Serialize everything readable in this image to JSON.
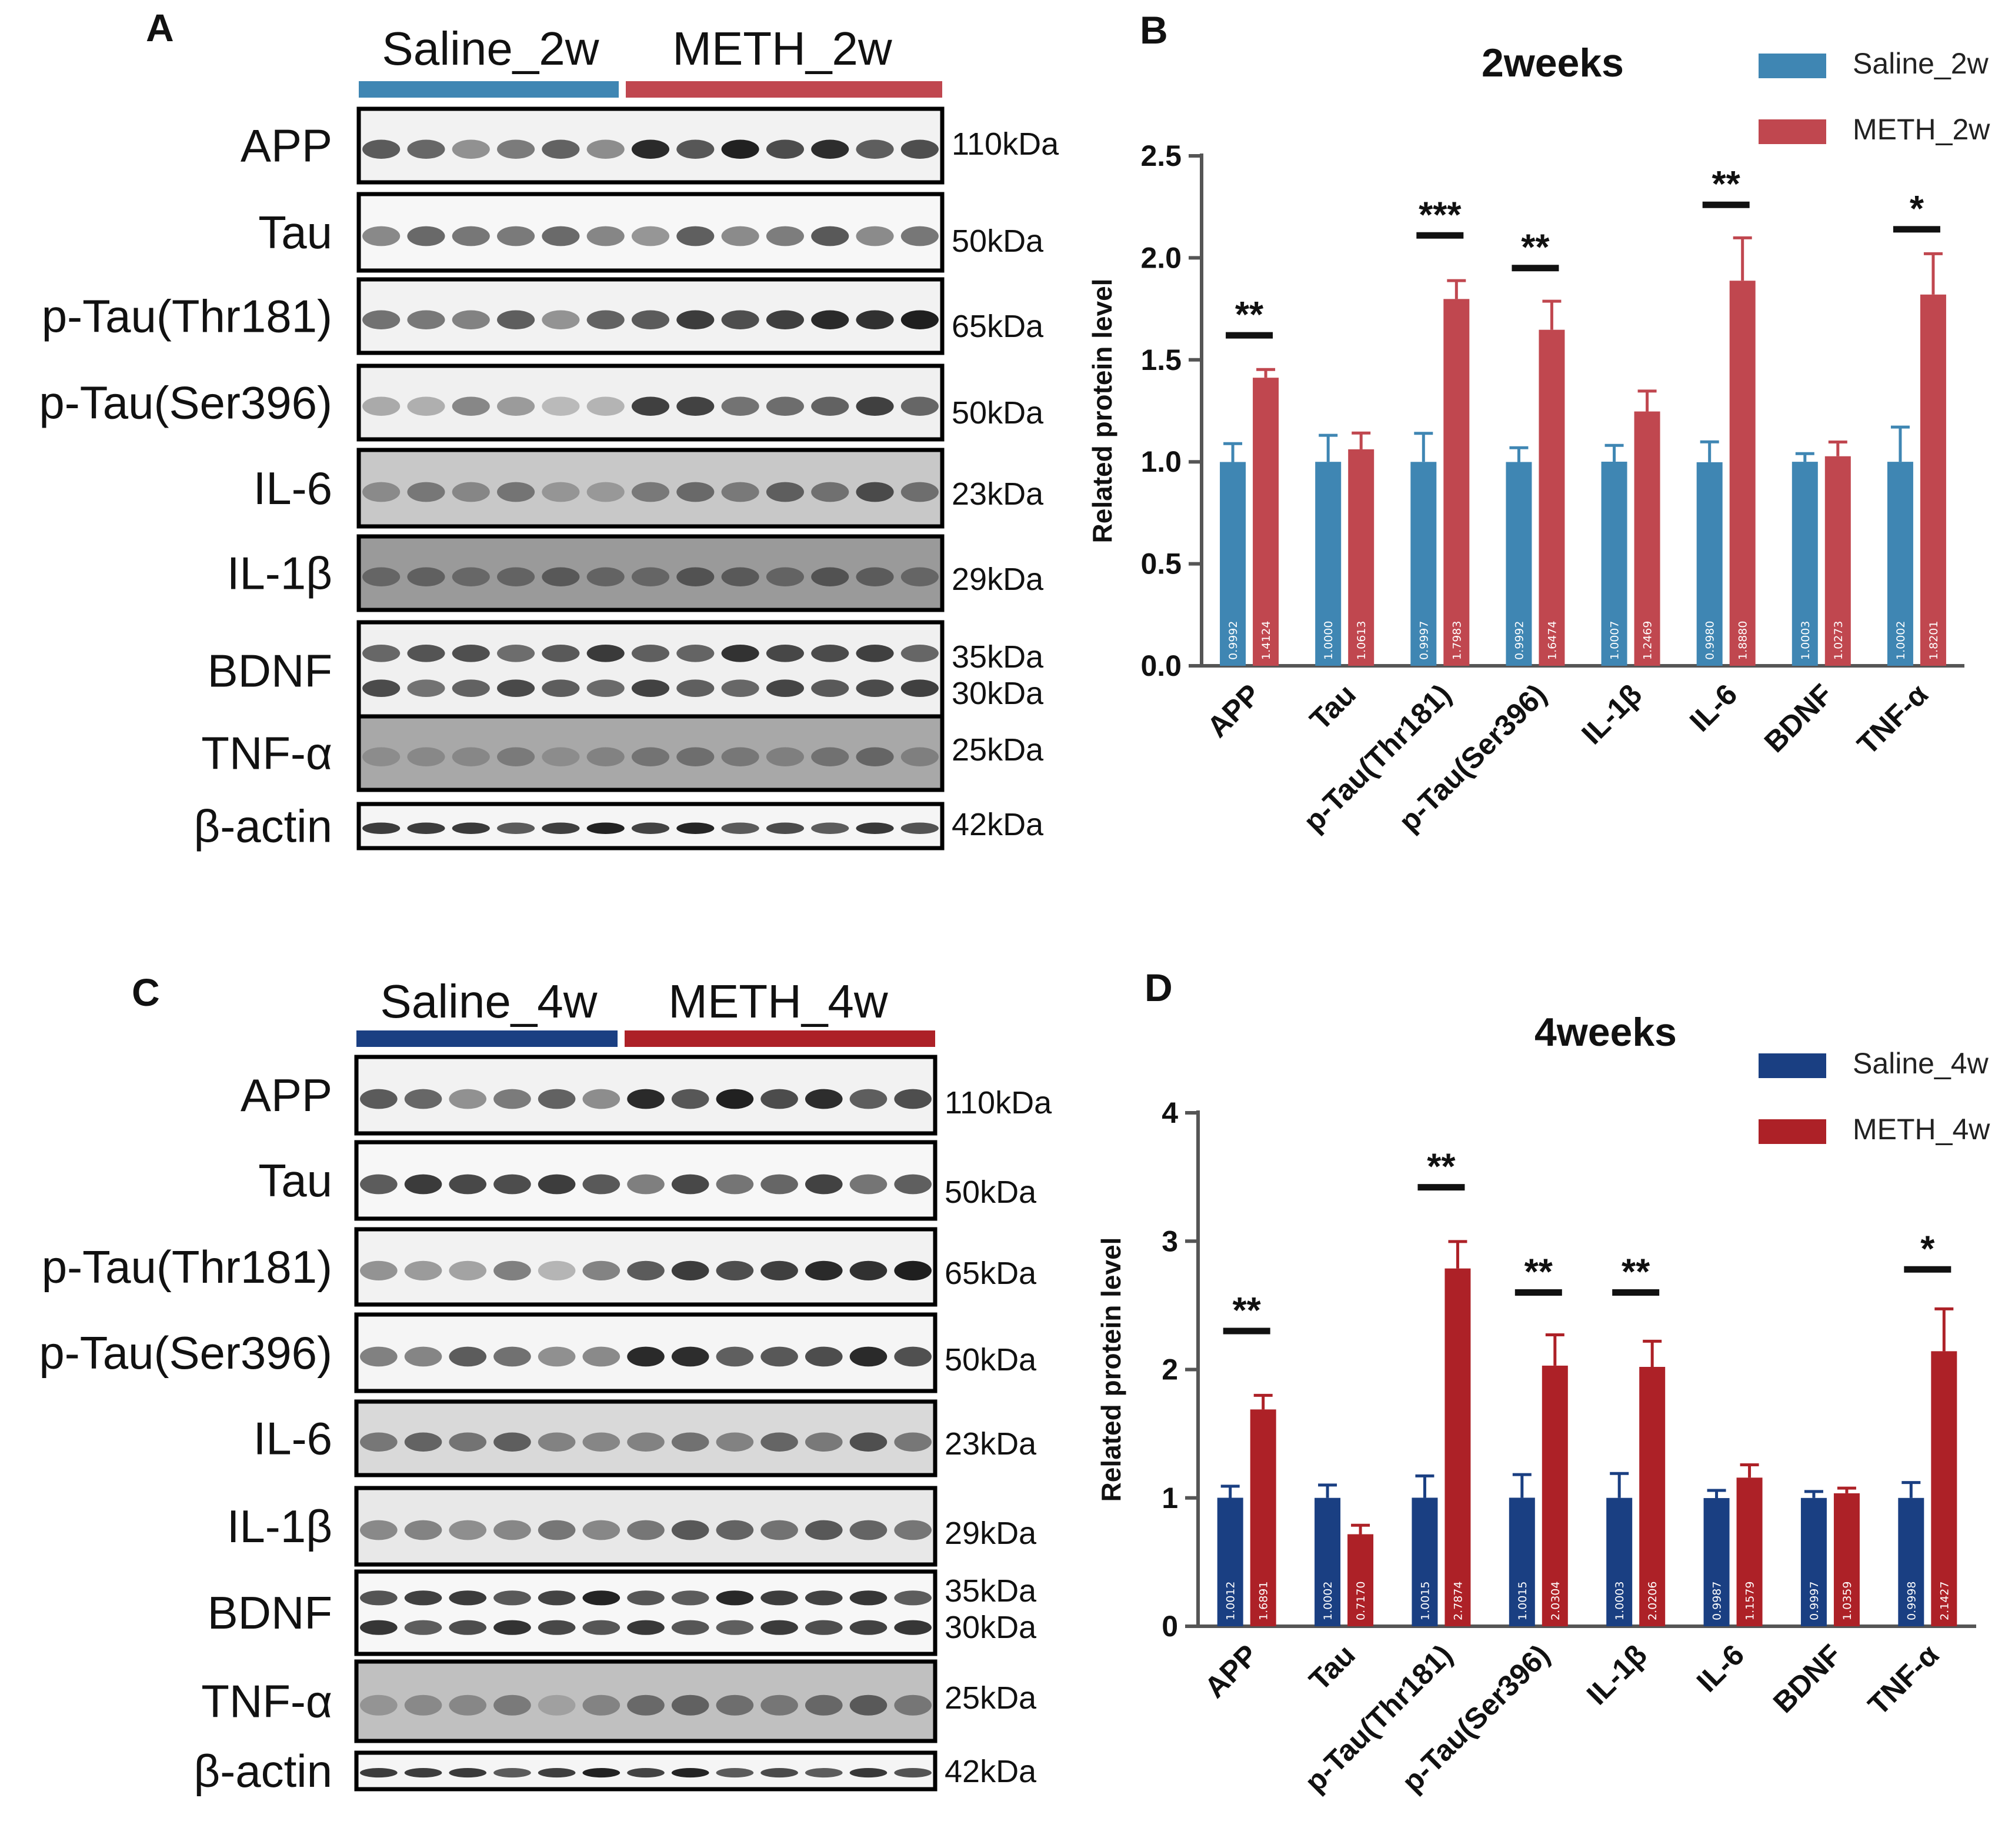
{
  "panels": {
    "A": "A",
    "B": "B",
    "C": "C",
    "D": "D"
  },
  "blots": [
    {
      "letter_key": "A",
      "groups": [
        "Saline_2w",
        "METH_2w"
      ],
      "group_colors": [
        "#3f86b3",
        "#c0474f"
      ],
      "rows": [
        {
          "label": "APP",
          "kda": [
            "110kDa"
          ]
        },
        {
          "label": "Tau",
          "kda": [
            "50kDa"
          ]
        },
        {
          "label": "p-Tau(Thr181)",
          "kda": [
            "65kDa"
          ]
        },
        {
          "label": "p-Tau(Ser396)",
          "kda": [
            "50kDa"
          ]
        },
        {
          "label": "IL-6",
          "kda": [
            "23kDa"
          ]
        },
        {
          "label": "IL-1β",
          "kda": [
            "29kDa"
          ]
        },
        {
          "label": "BDNF",
          "kda": [
            "35kDa",
            "30kDa"
          ]
        },
        {
          "label": "TNF-α",
          "kda": [
            "25kDa"
          ]
        },
        {
          "label": "β-actin",
          "kda": [
            "42kDa"
          ]
        }
      ]
    },
    {
      "letter_key": "C",
      "groups": [
        "Saline_4w",
        "METH_4w"
      ],
      "group_colors": [
        "#1a3f82",
        "#ad2127"
      ],
      "rows": [
        {
          "label": "APP",
          "kda": [
            "110kDa"
          ]
        },
        {
          "label": "Tau",
          "kda": [
            "50kDa"
          ]
        },
        {
          "label": "p-Tau(Thr181)",
          "kda": [
            "65kDa"
          ]
        },
        {
          "label": "p-Tau(Ser396)",
          "kda": [
            "50kDa"
          ]
        },
        {
          "label": "IL-6",
          "kda": [
            "23kDa"
          ]
        },
        {
          "label": "IL-1β",
          "kda": [
            "29kDa"
          ]
        },
        {
          "label": "BDNF",
          "kda": [
            "35kDa",
            "30kDa"
          ]
        },
        {
          "label": "TNF-α",
          "kda": [
            "25kDa"
          ]
        },
        {
          "label": "β-actin",
          "kda": [
            "42kDa"
          ]
        }
      ]
    }
  ],
  "chart_data": [
    {
      "type": "bar",
      "title": "2weeks",
      "ylabel": "Related protein level",
      "ylim": [
        0,
        2.5
      ],
      "yticks": [
        "0.0",
        "0.5",
        "1.0",
        "1.5",
        "2.0",
        "2.5"
      ],
      "legend_position": "top-right",
      "categories": [
        "APP",
        "Tau",
        "p-Tau(Thr181)",
        "p-Tau(Ser396)",
        "IL-1β",
        "IL-6",
        "BDNF",
        "TNF-α"
      ],
      "series": [
        {
          "name": "Saline_2w",
          "color": "#3f86b3",
          "values": [
            0.9992,
            1.0,
            0.9997,
            0.9992,
            1.0007,
            0.998,
            1.0003,
            1.0002
          ],
          "labels": [
            "0.9992",
            "1.0000",
            "0.9997",
            "0.9992",
            "1.0007",
            "0.9980",
            "1.0003",
            "1.0002"
          ],
          "errors": [
            0.09,
            0.13,
            0.14,
            0.07,
            0.08,
            0.1,
            0.04,
            0.17
          ]
        },
        {
          "name": "METH_2w",
          "color": "#c0474f",
          "values": [
            1.4124,
            1.0613,
            1.7983,
            1.6474,
            1.2469,
            1.888,
            1.0273,
            1.8201
          ],
          "labels": [
            "1.4124",
            "1.0613",
            "1.7983",
            "1.6474",
            "1.2469",
            "1.8880",
            "1.0273",
            "1.8201"
          ],
          "errors": [
            0.04,
            0.08,
            0.09,
            0.14,
            0.1,
            0.21,
            0.07,
            0.2
          ]
        }
      ],
      "significance": [
        {
          "category": "APP",
          "stars": "**",
          "y": 1.62
        },
        {
          "category": "p-Tau(Thr181)",
          "stars": "***",
          "y": 2.11
        },
        {
          "category": "p-Tau(Ser396)",
          "stars": "**",
          "y": 1.95
        },
        {
          "category": "IL-6",
          "stars": "**",
          "y": 2.26
        },
        {
          "category": "TNF-α",
          "stars": "*",
          "y": 2.14
        }
      ]
    },
    {
      "type": "bar",
      "title": "4weeks",
      "ylabel": "Related protein level",
      "ylim": [
        0,
        4
      ],
      "yticks": [
        "0",
        "1",
        "2",
        "3",
        "4"
      ],
      "legend_position": "top-right",
      "categories": [
        "APP",
        "Tau",
        "p-Tau(Thr181)",
        "p-Tau(Ser396)",
        "IL-1β",
        "IL-6",
        "BDNF",
        "TNF-α"
      ],
      "series": [
        {
          "name": "Saline_4w",
          "color": "#1a3f82",
          "values": [
            1.0012,
            1.0002,
            1.0015,
            1.0015,
            1.0003,
            0.9987,
            0.9997,
            0.9998
          ],
          "labels": [
            "1.0012",
            "1.0002",
            "1.0015",
            "1.0015",
            "1.0003",
            "0.9987",
            "0.9997",
            "0.9998"
          ],
          "errors": [
            0.09,
            0.1,
            0.17,
            0.18,
            0.19,
            0.06,
            0.05,
            0.12
          ]
        },
        {
          "name": "METH_4w",
          "color": "#ad2127",
          "values": [
            1.6891,
            0.717,
            2.7874,
            2.0304,
            2.0206,
            1.1579,
            1.0359,
            2.1427
          ],
          "labels": [
            "1.6891",
            "0.7170",
            "2.7874",
            "2.0304",
            "2.0206",
            "1.1579",
            "1.0359",
            "2.1427"
          ],
          "errors": [
            0.11,
            0.07,
            0.21,
            0.24,
            0.2,
            0.1,
            0.04,
            0.33
          ]
        }
      ],
      "significance": [
        {
          "category": "APP",
          "stars": "**",
          "y": 2.3
        },
        {
          "category": "p-Tau(Thr181)",
          "stars": "**",
          "y": 3.42
        },
        {
          "category": "p-Tau(Ser396)",
          "stars": "**",
          "y": 2.6
        },
        {
          "category": "IL-1β",
          "stars": "**",
          "y": 2.6
        },
        {
          "category": "TNF-α",
          "stars": "*",
          "y": 2.78
        }
      ]
    }
  ]
}
